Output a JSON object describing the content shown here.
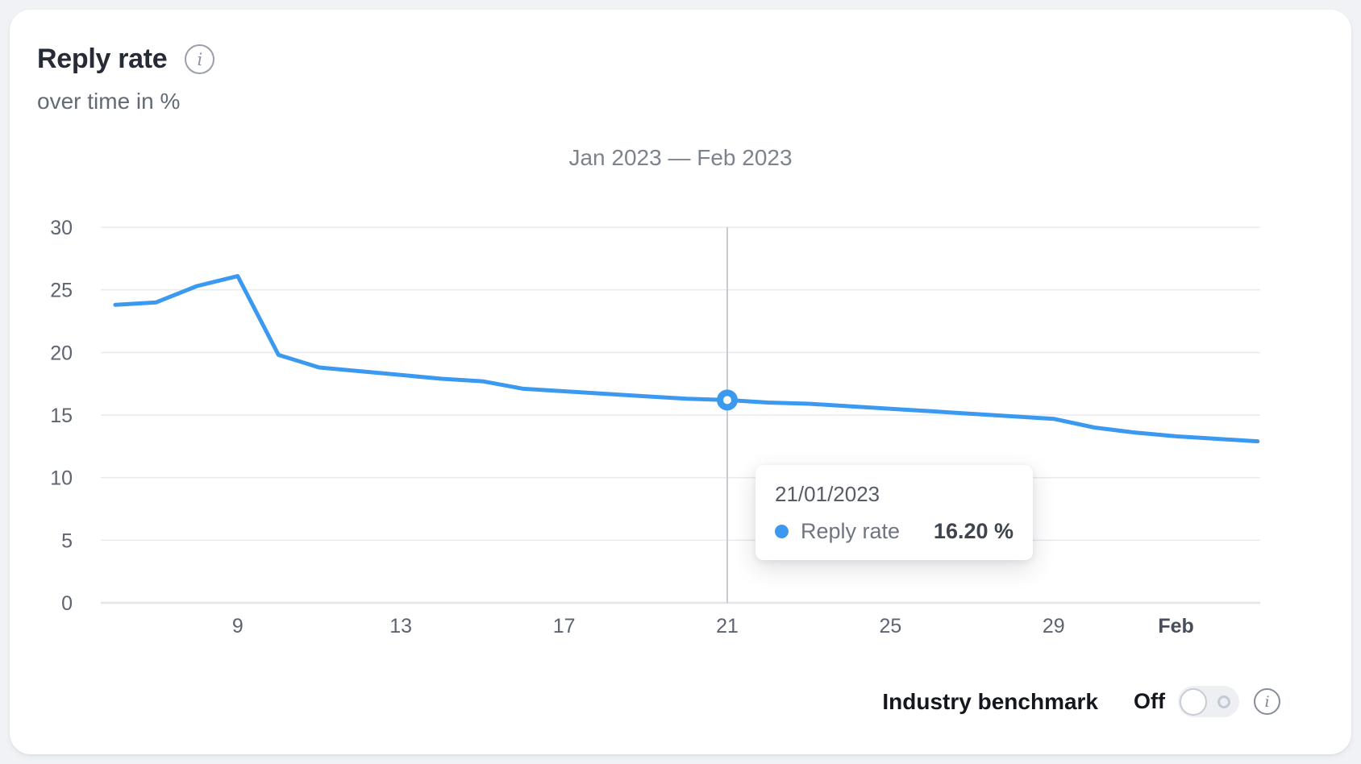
{
  "header": {
    "title": "Reply rate",
    "subtitle": "over time in %"
  },
  "icons": {
    "info": "i"
  },
  "chart_data": {
    "type": "line",
    "title": "Jan 2023 — Feb 2023",
    "ylim": [
      0,
      30
    ],
    "yticks": [
      0,
      5,
      10,
      15,
      20,
      25,
      30
    ],
    "grid": true,
    "legend_position": "none",
    "grid_color": "#e9eaee",
    "axis_color": "#e2e4e8",
    "crosshair_color": "#c7cbd2",
    "tick_color": "#5d6470",
    "tick_bold_color": "#474d59",
    "series": [
      {
        "name": "Reply rate",
        "color": "#3b9af0",
        "dates": [
          "06/01/2023",
          "07/01/2023",
          "08/01/2023",
          "09/01/2023",
          "10/01/2023",
          "11/01/2023",
          "12/01/2023",
          "13/01/2023",
          "14/01/2023",
          "15/01/2023",
          "16/01/2023",
          "17/01/2023",
          "18/01/2023",
          "19/01/2023",
          "20/01/2023",
          "21/01/2023",
          "22/01/2023",
          "23/01/2023",
          "24/01/2023",
          "25/01/2023",
          "26/01/2023",
          "27/01/2023",
          "28/01/2023",
          "29/01/2023",
          "30/01/2023",
          "31/01/2023",
          "01/02/2023",
          "02/02/2023",
          "03/02/2023"
        ],
        "values": [
          23.8,
          24.0,
          25.3,
          26.1,
          19.8,
          18.8,
          18.5,
          18.2,
          17.9,
          17.7,
          17.1,
          16.9,
          16.7,
          16.5,
          16.3,
          16.2,
          16.0,
          15.9,
          15.7,
          15.5,
          15.3,
          15.1,
          14.9,
          14.7,
          14.0,
          13.6,
          13.3,
          13.1,
          12.9
        ]
      }
    ],
    "xticks": [
      {
        "index": 3,
        "label": "9",
        "bold": false
      },
      {
        "index": 7,
        "label": "13",
        "bold": false
      },
      {
        "index": 11,
        "label": "17",
        "bold": false
      },
      {
        "index": 15,
        "label": "21",
        "bold": false
      },
      {
        "index": 19,
        "label": "25",
        "bold": false
      },
      {
        "index": 23,
        "label": "29",
        "bold": false
      },
      {
        "index": 26,
        "label": "Feb",
        "bold": true
      }
    ],
    "selected": {
      "index": 15,
      "date": "21/01/2023",
      "value": 16.2
    }
  },
  "tooltip": {
    "date": "21/01/2023",
    "series": "Reply rate",
    "value": "16.20 %"
  },
  "benchmark": {
    "label": "Industry benchmark",
    "state": "Off"
  },
  "colors": {
    "accent": "#3b9af0",
    "card_bg": "#ffffff",
    "page_bg": "#f0f2f5"
  }
}
